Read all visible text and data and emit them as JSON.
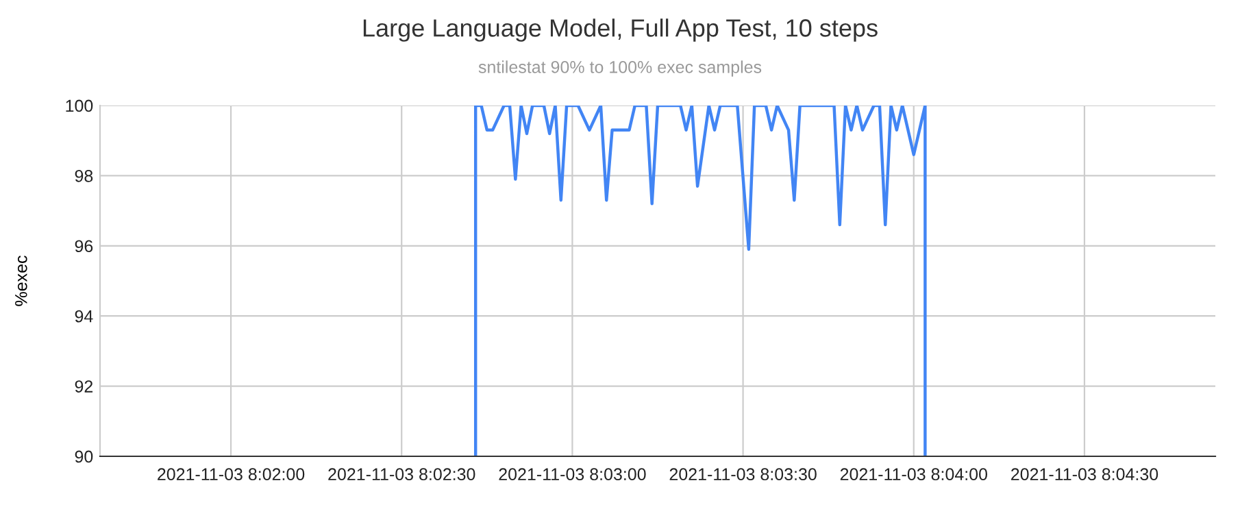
{
  "chart_data": {
    "type": "line",
    "title": "Large Language Model, Full App Test, 10 steps",
    "subtitle": "sntilestat 90% to 100% exec samples",
    "ylabel": "%exec",
    "series": [
      {
        "color": "#4285f4",
        "x": [
          "2021-11-03T08:02:43",
          "2021-11-03T08:02:43",
          "2021-11-03T08:02:44",
          "2021-11-03T08:02:45",
          "2021-11-03T08:02:46",
          "2021-11-03T08:02:48",
          "2021-11-03T08:02:49",
          "2021-11-03T08:02:50",
          "2021-11-03T08:02:51",
          "2021-11-03T08:02:52",
          "2021-11-03T08:02:53",
          "2021-11-03T08:02:55",
          "2021-11-03T08:02:56",
          "2021-11-03T08:02:57",
          "2021-11-03T08:02:58",
          "2021-11-03T08:02:59",
          "2021-11-03T08:03:01",
          "2021-11-03T08:03:03",
          "2021-11-03T08:03:05",
          "2021-11-03T08:03:06",
          "2021-11-03T08:03:07",
          "2021-11-03T08:03:10",
          "2021-11-03T08:03:11",
          "2021-11-03T08:03:13",
          "2021-11-03T08:03:14",
          "2021-11-03T08:03:15",
          "2021-11-03T08:03:19",
          "2021-11-03T08:03:20",
          "2021-11-03T08:03:21",
          "2021-11-03T08:03:22",
          "2021-11-03T08:03:24",
          "2021-11-03T08:03:25",
          "2021-11-03T08:03:26",
          "2021-11-03T08:03:29",
          "2021-11-03T08:03:31",
          "2021-11-03T08:03:32",
          "2021-11-03T08:03:34",
          "2021-11-03T08:03:35",
          "2021-11-03T08:03:36",
          "2021-11-03T08:03:38",
          "2021-11-03T08:03:39",
          "2021-11-03T08:03:40",
          "2021-11-03T08:03:46",
          "2021-11-03T08:03:47",
          "2021-11-03T08:03:48",
          "2021-11-03T08:03:49",
          "2021-11-03T08:03:50",
          "2021-11-03T08:03:51",
          "2021-11-03T08:03:53",
          "2021-11-03T08:03:54",
          "2021-11-03T08:03:55",
          "2021-11-03T08:03:56",
          "2021-11-03T08:03:57",
          "2021-11-03T08:03:58",
          "2021-11-03T08:04:00",
          "2021-11-03T08:04:02",
          "2021-11-03T08:04:02"
        ],
        "values": [
          90,
          100,
          100,
          99.3,
          99.3,
          100,
          100,
          97.9,
          100,
          99.2,
          100,
          100,
          99.2,
          100,
          97.3,
          100,
          100,
          99.3,
          100,
          97.3,
          99.3,
          99.3,
          100,
          100,
          97.2,
          100,
          100,
          99.3,
          100,
          97.7,
          100,
          99.3,
          100,
          100,
          95.9,
          100,
          100,
          99.3,
          100,
          99.3,
          97.3,
          100,
          100,
          96.6,
          100,
          99.3,
          100,
          99.3,
          100,
          100,
          96.6,
          100,
          99.3,
          100,
          98.6,
          100,
          90
        ]
      }
    ],
    "xlim": [
      "2021-11-03T08:01:37",
      "2021-11-03T08:04:53"
    ],
    "xticks": [
      {
        "value": "2021-11-03T08:02:00",
        "label": "2021-11-03 8:02:00"
      },
      {
        "value": "2021-11-03T08:02:30",
        "label": "2021-11-03 8:02:30"
      },
      {
        "value": "2021-11-03T08:03:00",
        "label": "2021-11-03 8:03:00"
      },
      {
        "value": "2021-11-03T08:03:30",
        "label": "2021-11-03 8:03:30"
      },
      {
        "value": "2021-11-03T08:04:00",
        "label": "2021-11-03 8:04:00"
      },
      {
        "value": "2021-11-03T08:04:30",
        "label": "2021-11-03 8:04:30"
      }
    ],
    "ylim": [
      90,
      100
    ],
    "yticks": [
      90,
      92,
      94,
      96,
      98,
      100
    ],
    "grid": true,
    "line_style": "solid",
    "marker": "none"
  }
}
